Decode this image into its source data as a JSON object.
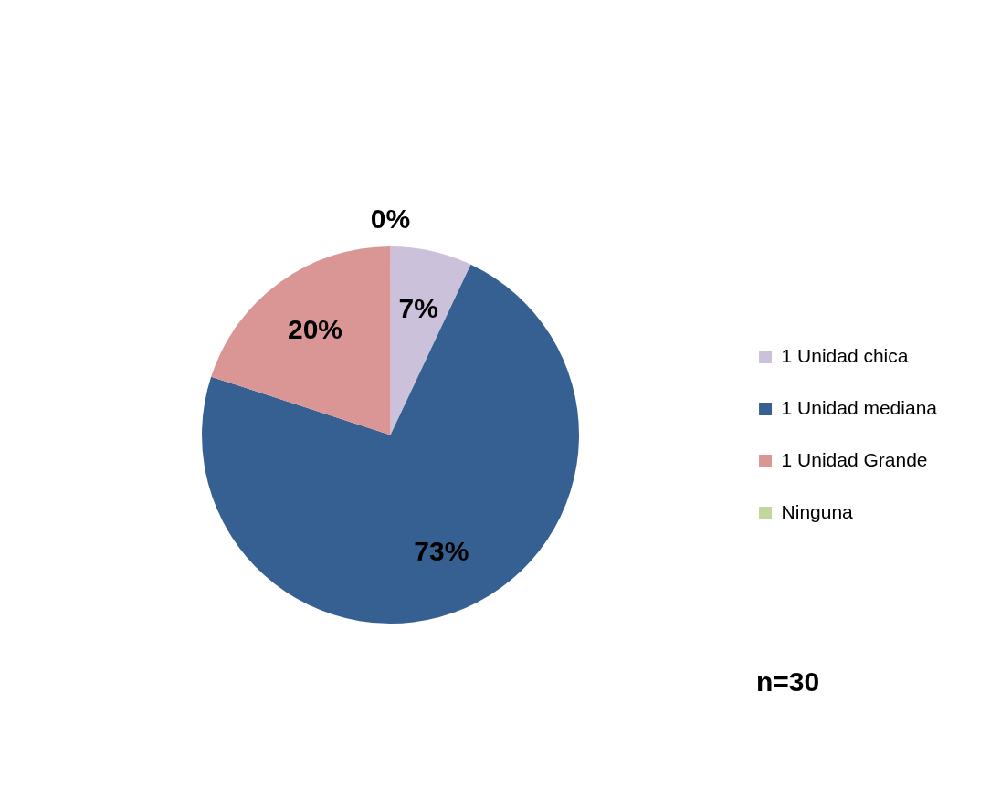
{
  "chart_data": {
    "type": "pie",
    "categories": [
      "1 Unidad chica",
      "1 Unidad mediana",
      "1 Unidad Grande",
      "Ninguna"
    ],
    "values": [
      7,
      73,
      20,
      0
    ],
    "colors": [
      "#ccc1da",
      "#376092",
      "#d99694",
      "#c3d69b"
    ],
    "value_labels": [
      "7%",
      "73%",
      "20%",
      "0%"
    ],
    "legend": "right",
    "annotations": [
      "n=30"
    ]
  }
}
